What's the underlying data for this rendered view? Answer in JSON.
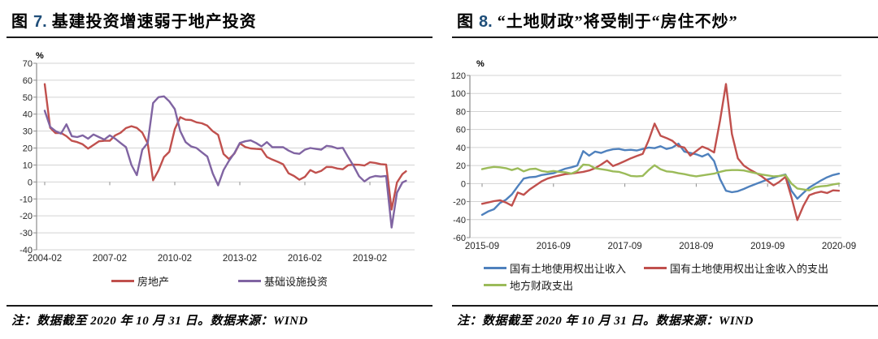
{
  "figures": [
    {
      "fig_prefix": "图",
      "fig_num": "7.",
      "title": "基建投资增速弱于地产投资",
      "percent_label": "%",
      "note": "注：数据截至 2020 年 10 月 31 日。数据来源：WIND"
    },
    {
      "fig_prefix": "图",
      "fig_num": "8.",
      "title": "“土地财政”将受制于“房住不炒”",
      "percent_label": "%",
      "note": "注：数据截至 2020 年 10 月 31 日。数据来源：WIND"
    }
  ],
  "chart_data": [
    {
      "type": "line",
      "title": "基建投资增速弱于地产投资",
      "unit": "%",
      "ylim": [
        -40,
        70
      ],
      "ystep": 10,
      "grid": true,
      "legend_position": "bottom",
      "xtick_labels": [
        "2004-02",
        "2007-02",
        "2010-02",
        "2013-02",
        "2016-02",
        "2019-02"
      ],
      "x": [
        "2004-02",
        "2004-05",
        "2004-08",
        "2004-11",
        "2005-02",
        "2005-05",
        "2005-08",
        "2005-11",
        "2006-02",
        "2006-05",
        "2006-08",
        "2006-11",
        "2007-02",
        "2007-05",
        "2007-08",
        "2007-11",
        "2008-02",
        "2008-05",
        "2008-08",
        "2008-11",
        "2009-02",
        "2009-05",
        "2009-08",
        "2009-11",
        "2010-02",
        "2010-05",
        "2010-08",
        "2010-11",
        "2011-02",
        "2011-05",
        "2011-08",
        "2011-11",
        "2012-02",
        "2012-05",
        "2012-08",
        "2012-11",
        "2013-02",
        "2013-05",
        "2013-08",
        "2013-11",
        "2014-02",
        "2014-05",
        "2014-08",
        "2014-11",
        "2015-02",
        "2015-05",
        "2015-08",
        "2015-11",
        "2016-02",
        "2016-05",
        "2016-08",
        "2016-11",
        "2017-02",
        "2017-05",
        "2017-08",
        "2017-11",
        "2018-02",
        "2018-05",
        "2018-08",
        "2018-11",
        "2019-02",
        "2019-05",
        "2019-08",
        "2019-11",
        "2020-02",
        "2020-05",
        "2020-08",
        "2020-10"
      ],
      "series": [
        {
          "name": "房地产",
          "color": "#C0504D",
          "values": [
            57.7,
            32.0,
            28.8,
            28.9,
            27.0,
            24.3,
            23.5,
            22.2,
            19.7,
            21.8,
            24.0,
            24.3,
            24.3,
            27.5,
            29.0,
            31.8,
            32.9,
            31.9,
            29.1,
            22.7,
            1.0,
            6.8,
            14.7,
            17.8,
            31.1,
            38.2,
            36.7,
            36.5,
            35.2,
            34.6,
            33.2,
            29.9,
            27.8,
            16.5,
            13.5,
            16.7,
            22.8,
            20.6,
            19.8,
            19.5,
            19.3,
            14.7,
            13.2,
            11.9,
            10.4,
            5.1,
            3.5,
            1.3,
            3.0,
            7.0,
            5.4,
            6.5,
            8.9,
            8.8,
            7.9,
            7.5,
            9.9,
            10.2,
            10.1,
            9.7,
            11.6,
            11.2,
            10.5,
            10.2,
            -16.3,
            -0.3,
            4.6,
            6.3
          ]
        },
        {
          "name": "基础设施投资",
          "color": "#8064A2",
          "values": [
            42.0,
            32.5,
            30.0,
            28.5,
            34.0,
            27.0,
            26.5,
            27.5,
            25.5,
            28.0,
            26.5,
            25.0,
            27.5,
            25.5,
            23.0,
            20.5,
            10.0,
            4.0,
            19.0,
            23.0,
            46.5,
            50.0,
            50.5,
            47.5,
            43.0,
            30.0,
            23.5,
            21.0,
            20.0,
            17.5,
            15.0,
            5.0,
            -2.0,
            7.0,
            12.5,
            17.0,
            23.0,
            24.0,
            24.5,
            23.0,
            21.0,
            23.5,
            20.5,
            20.5,
            20.5,
            18.5,
            17.0,
            16.6,
            19.0,
            20.0,
            19.5,
            19.0,
            21.3,
            20.9,
            19.8,
            20.1,
            14.6,
            9.4,
            3.4,
            0.3,
            2.6,
            3.5,
            3.2,
            3.5,
            -26.9,
            -6.3,
            -0.3,
            0.7
          ]
        }
      ]
    },
    {
      "type": "line",
      "title": "“土地财政”将受制于“房住不炒”",
      "unit": "%",
      "ylim": [
        -60,
        120
      ],
      "ystep": 20,
      "grid": true,
      "legend_position": "bottom",
      "xtick_labels": [
        "2015-09",
        "2016-09",
        "2017-09",
        "2018-09",
        "2019-09",
        "2020-09"
      ],
      "x": [
        "2015-09",
        "2015-10",
        "2015-11",
        "2015-12",
        "2016-01",
        "2016-02",
        "2016-03",
        "2016-04",
        "2016-05",
        "2016-06",
        "2016-07",
        "2016-08",
        "2016-09",
        "2016-10",
        "2016-11",
        "2016-12",
        "2017-01",
        "2017-02",
        "2017-03",
        "2017-04",
        "2017-05",
        "2017-06",
        "2017-07",
        "2017-08",
        "2017-09",
        "2017-10",
        "2017-11",
        "2017-12",
        "2018-01",
        "2018-02",
        "2018-03",
        "2018-04",
        "2018-05",
        "2018-06",
        "2018-07",
        "2018-08",
        "2018-09",
        "2018-10",
        "2018-11",
        "2018-12",
        "2019-01",
        "2019-02",
        "2019-03",
        "2019-04",
        "2019-05",
        "2019-06",
        "2019-07",
        "2019-08",
        "2019-09",
        "2019-10",
        "2019-11",
        "2019-12",
        "2020-01",
        "2020-02",
        "2020-03",
        "2020-04",
        "2020-05",
        "2020-06",
        "2020-07",
        "2020-08",
        "2020-09"
      ],
      "series": [
        {
          "name": "国有土地使用权出让收入",
          "color": "#4F81BD",
          "values": [
            -34.7,
            -31.0,
            -28.5,
            -21.6,
            -18.0,
            -12.0,
            -3.0,
            5.5,
            7.0,
            7.5,
            9.5,
            10.5,
            11.5,
            14.0,
            16.5,
            18.0,
            20.0,
            36.0,
            31.0,
            35.5,
            34.0,
            36.5,
            38.0,
            38.5,
            37.0,
            37.5,
            36.7,
            38.4,
            40.0,
            39.3,
            41.4,
            38.4,
            40.0,
            44.3,
            35.5,
            34.0,
            32.4,
            30.0,
            33.0,
            25.0,
            5.0,
            -8.0,
            -9.6,
            -8.5,
            -6.0,
            -3.0,
            -0.5,
            2.0,
            4.5,
            6.5,
            8.5,
            10.0,
            -8.0,
            -16.8,
            -10.5,
            -4.5,
            -0.5,
            3.5,
            7.0,
            9.5,
            11.0
          ]
        },
        {
          "name": "国有土地使用权出让金收入的支出",
          "color": "#C0504D",
          "values": [
            -22.5,
            -21.0,
            -19.5,
            -18.5,
            -21.0,
            -24.5,
            -10.0,
            -12.5,
            -6.5,
            -2.0,
            2.5,
            5.5,
            7.5,
            9.0,
            10.5,
            11.0,
            12.0,
            13.0,
            14.5,
            17.0,
            21.0,
            25.5,
            19.5,
            22.0,
            25.0,
            28.0,
            30.5,
            33.0,
            48.0,
            66.5,
            53.0,
            50.5,
            47.5,
            41.5,
            40.0,
            31.0,
            36.0,
            41.0,
            38.5,
            34.5,
            70.0,
            110.5,
            55.0,
            28.0,
            20.0,
            15.5,
            12.0,
            8.0,
            3.0,
            -2.0,
            2.0,
            7.5,
            -15.0,
            -40.5,
            -25.0,
            -13.0,
            -10.5,
            -9.0,
            -10.5,
            -7.5,
            -8.0
          ]
        },
        {
          "name": "地方财政支出",
          "color": "#9BBB59",
          "values": [
            16.0,
            17.5,
            18.5,
            18.0,
            17.0,
            15.0,
            17.0,
            13.5,
            16.0,
            16.5,
            14.0,
            13.0,
            14.0,
            13.0,
            12.5,
            11.0,
            14.0,
            21.0,
            20.5,
            17.0,
            16.0,
            15.0,
            13.5,
            13.0,
            11.0,
            8.5,
            8.0,
            8.5,
            15.0,
            20.4,
            16.0,
            13.5,
            13.0,
            11.5,
            10.5,
            9.0,
            8.0,
            9.0,
            10.0,
            11.0,
            13.0,
            14.5,
            15.0,
            15.0,
            14.5,
            13.0,
            11.5,
            10.0,
            9.0,
            8.0,
            8.5,
            9.5,
            0.0,
            -5.5,
            -6.5,
            -7.5,
            -4.0,
            -3.0,
            -2.5,
            -1.0,
            0.0
          ]
        }
      ]
    }
  ]
}
